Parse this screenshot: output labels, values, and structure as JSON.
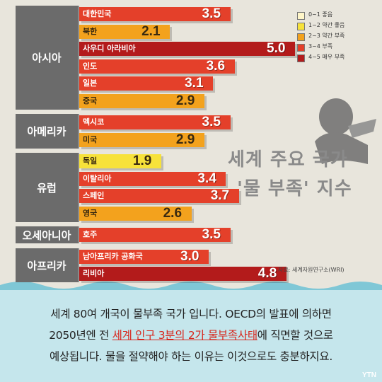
{
  "chart_data": {
    "type": "bar",
    "title": "세계 주요 국가 '물 부족' 지수",
    "xlim": [
      0,
      5
    ],
    "groups": [
      {
        "region": "아시아",
        "items": [
          {
            "name": "대한민국",
            "value": 3.5
          },
          {
            "name": "북한",
            "value": 2.1
          },
          {
            "name": "사우디 아라비아",
            "value": 5.0
          },
          {
            "name": "인도",
            "value": 3.6
          },
          {
            "name": "일본",
            "value": 3.1
          },
          {
            "name": "중국",
            "value": 2.9
          }
        ]
      },
      {
        "region": "아메리카",
        "items": [
          {
            "name": "멕시코",
            "value": 3.5
          },
          {
            "name": "미국",
            "value": 2.9
          }
        ]
      },
      {
        "region": "유럽",
        "items": [
          {
            "name": "독일",
            "value": 1.9
          },
          {
            "name": "이탈리아",
            "value": 3.4
          },
          {
            "name": "스페인",
            "value": 3.7
          },
          {
            "name": "영국",
            "value": 2.6
          }
        ]
      },
      {
        "region": "오세아니아",
        "items": [
          {
            "name": "호주",
            "value": 3.5
          }
        ]
      },
      {
        "region": "아프리카",
        "items": [
          {
            "name": "남아프리카 공화국",
            "value": 3.0
          },
          {
            "name": "리비아",
            "value": 4.8
          }
        ]
      }
    ],
    "legend": [
      {
        "label": "0~1 좋음",
        "color": "#fff6c8"
      },
      {
        "label": "1~2 약간 좋음",
        "color": "#f7e23a"
      },
      {
        "label": "2~3 약간 부족",
        "color": "#f3a21d"
      },
      {
        "label": "3~4 부족",
        "color": "#e4402a"
      },
      {
        "label": "4~5 매우 부족",
        "color": "#b31b1b"
      }
    ],
    "legend_position": "top-right",
    "source": "자료: 세계자원연구소(WRI)"
  },
  "headline": {
    "line1": "세계 주요 국가",
    "line2": "'물 부족' 지수"
  },
  "body": {
    "line1": "세계 80여 개국이 물부족 국가 입니다. OECD의 발표에 의하면",
    "line2_pre": "2050년엔 전 ",
    "line2_hl": "세계 인구 3분의 2가 물부족사태",
    "line2_post": "에 직면할 것으로",
    "line3": "예상됩니다. 물을 절약해야 하는 이유는 이것으로도 충분하지요."
  },
  "logo": "YTN"
}
